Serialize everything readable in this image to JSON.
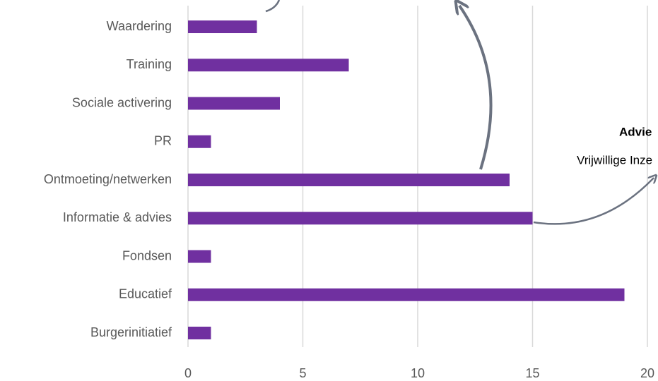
{
  "chart_data": {
    "type": "bar",
    "orientation": "horizontal",
    "categories": [
      "Waardering",
      "Training",
      "Sociale activering",
      "PR",
      "Ontmoeting/netwerken",
      "Informatie & advies",
      "Fondsen",
      "Educatief",
      "Burgerinitiatief"
    ],
    "values": [
      3,
      7,
      4,
      1,
      14,
      15,
      1,
      19,
      1
    ],
    "color": "#7030a0",
    "xlim": [
      0,
      20
    ],
    "xticks": [
      0,
      5,
      10,
      15,
      20
    ],
    "grid": true,
    "annotations": [
      "Advie",
      "Vrijwillige Inze"
    ]
  }
}
